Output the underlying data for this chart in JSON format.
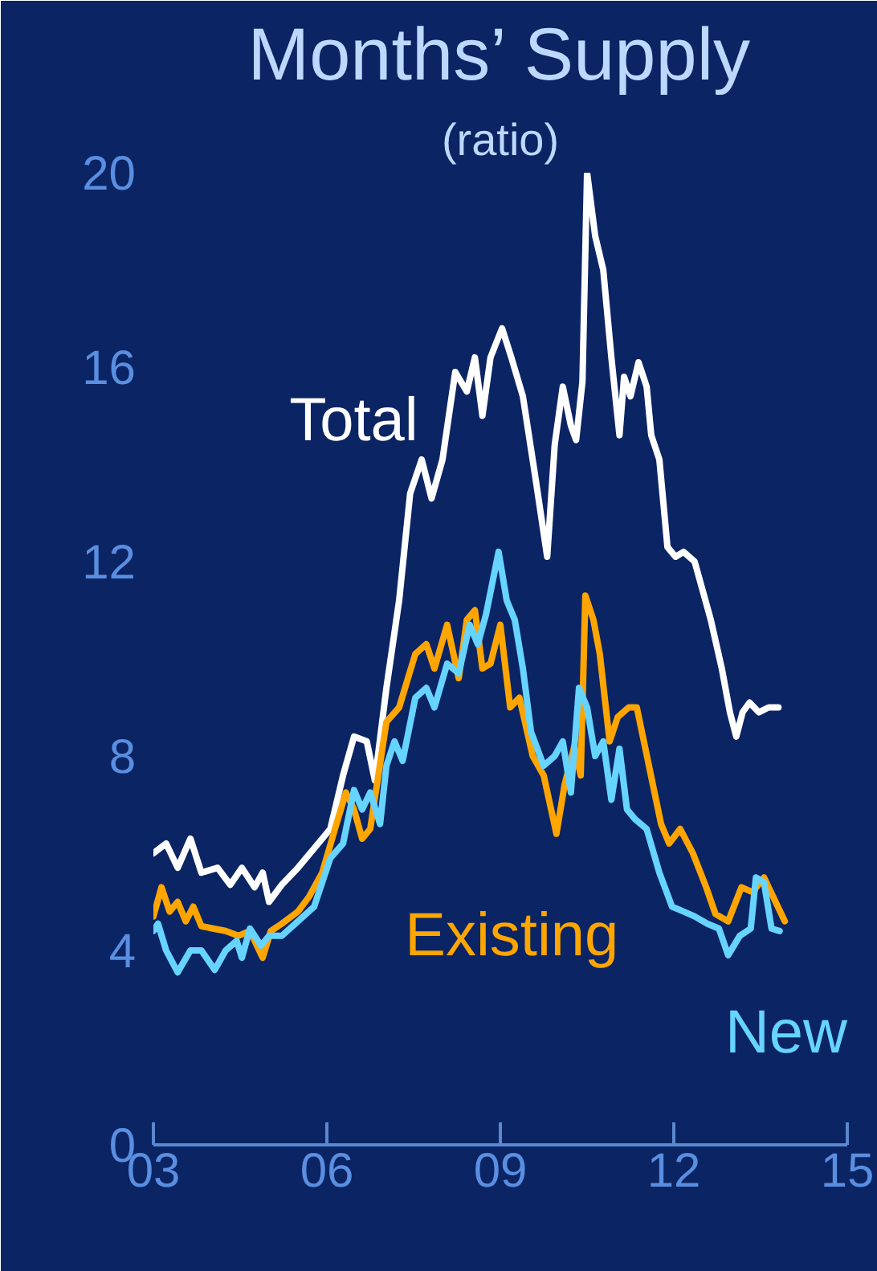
{
  "chart_data": {
    "type": "line",
    "title": "Months’ Supply",
    "subtitle": "(ratio)",
    "xlim": [
      2003,
      2015
    ],
    "xticks": [
      {
        "value": 2003,
        "label": "03"
      },
      {
        "value": 2006,
        "label": "06"
      },
      {
        "value": 2009,
        "label": "09"
      },
      {
        "value": 2012,
        "label": "12"
      },
      {
        "value": 2015,
        "label": "15"
      }
    ],
    "ylim": [
      0,
      20
    ],
    "yticks": [
      0,
      4,
      8,
      12,
      16,
      20
    ],
    "grid": false,
    "marker": "none",
    "line_style": "solid",
    "series": [
      {
        "name": "Total",
        "color": "#ffffff",
        "x": [
          2003.0,
          2003.22,
          2003.42,
          2003.64,
          2003.83,
          2004.11,
          2004.33,
          2004.53,
          2004.75,
          2004.89,
          2005.0,
          2005.22,
          2005.5,
          2005.78,
          2006.06,
          2006.28,
          2006.47,
          2006.69,
          2006.83,
          2007.03,
          2007.25,
          2007.44,
          2007.64,
          2007.81,
          2008.0,
          2008.22,
          2008.42,
          2008.56,
          2008.69,
          2008.83,
          2009.03,
          2009.19,
          2009.39,
          2009.61,
          2009.81,
          2009.94,
          2010.08,
          2010.22,
          2010.31,
          2010.42,
          2010.5,
          2010.64,
          2010.78,
          2010.92,
          2011.06,
          2011.14,
          2011.25,
          2011.39,
          2011.53,
          2011.61,
          2011.75,
          2011.89,
          2012.03,
          2012.17,
          2012.36,
          2012.64,
          2012.83,
          2012.97,
          2013.08,
          2013.19,
          2013.31,
          2013.47,
          2013.64,
          2013.81
        ],
        "values": [
          6.0,
          6.2,
          5.7,
          6.3,
          5.6,
          5.7,
          5.35,
          5.7,
          5.3,
          5.6,
          5.0,
          5.35,
          5.7,
          6.1,
          6.5,
          7.6,
          8.4,
          8.3,
          7.5,
          9.4,
          11.2,
          13.4,
          14.1,
          13.3,
          14.1,
          15.9,
          15.5,
          16.2,
          15.0,
          16.2,
          16.8,
          16.2,
          15.4,
          13.7,
          12.1,
          14.4,
          15.6,
          14.8,
          14.5,
          15.7,
          20.0,
          18.7,
          18.0,
          16.2,
          14.6,
          15.8,
          15.4,
          16.1,
          15.6,
          14.6,
          14.1,
          12.3,
          12.1,
          12.2,
          12.0,
          10.8,
          9.8,
          8.9,
          8.4,
          8.9,
          9.1,
          8.9,
          9.0,
          9.0
        ]
      },
      {
        "name": "Existing",
        "color": "#ffa500",
        "x": [
          2003.0,
          2003.14,
          2003.28,
          2003.42,
          2003.56,
          2003.69,
          2003.83,
          2004.03,
          2004.25,
          2004.47,
          2004.67,
          2004.89,
          2005.03,
          2005.22,
          2005.5,
          2005.69,
          2005.92,
          2006.14,
          2006.33,
          2006.47,
          2006.61,
          2006.75,
          2006.89,
          2007.03,
          2007.25,
          2007.53,
          2007.72,
          2007.86,
          2008.08,
          2008.28,
          2008.42,
          2008.56,
          2008.69,
          2008.83,
          2009.0,
          2009.17,
          2009.33,
          2009.56,
          2009.75,
          2009.97,
          2010.11,
          2010.28,
          2010.39,
          2010.47,
          2010.61,
          2010.72,
          2010.89,
          2011.03,
          2011.22,
          2011.36,
          2011.5,
          2011.78,
          2011.92,
          2012.11,
          2012.33,
          2012.56,
          2012.72,
          2012.94,
          2013.17,
          2013.36,
          2013.56,
          2013.72,
          2013.92
        ],
        "values": [
          4.7,
          5.3,
          4.8,
          5.0,
          4.6,
          4.9,
          4.5,
          4.45,
          4.4,
          4.3,
          4.4,
          3.85,
          4.4,
          4.55,
          4.8,
          5.1,
          5.6,
          6.5,
          7.25,
          6.9,
          6.3,
          6.5,
          7.6,
          8.7,
          9.0,
          10.1,
          10.3,
          9.8,
          10.7,
          9.6,
          10.8,
          11.0,
          9.8,
          9.9,
          10.7,
          9.0,
          9.2,
          8.0,
          7.6,
          6.4,
          7.4,
          8.2,
          7.6,
          11.3,
          10.8,
          10.1,
          8.3,
          8.8,
          9.0,
          9.0,
          8.2,
          6.6,
          6.2,
          6.5,
          6.0,
          5.3,
          4.75,
          4.6,
          5.3,
          5.2,
          5.5,
          5.1,
          4.6
        ]
      },
      {
        "name": "New",
        "color": "#66d4ff",
        "x": [
          2003.0,
          2003.08,
          2003.22,
          2003.42,
          2003.64,
          2003.83,
          2004.06,
          2004.25,
          2004.44,
          2004.53,
          2004.67,
          2004.86,
          2005.0,
          2005.22,
          2005.5,
          2005.78,
          2006.06,
          2006.28,
          2006.47,
          2006.61,
          2006.75,
          2006.92,
          2007.03,
          2007.17,
          2007.31,
          2007.53,
          2007.72,
          2007.86,
          2008.08,
          2008.28,
          2008.47,
          2008.61,
          2008.75,
          2008.97,
          2009.11,
          2009.25,
          2009.39,
          2009.53,
          2009.75,
          2009.94,
          2010.08,
          2010.22,
          2010.36,
          2010.5,
          2010.64,
          2010.78,
          2010.92,
          2011.06,
          2011.19,
          2011.33,
          2011.53,
          2011.75,
          2011.97,
          2012.17,
          2012.36,
          2012.58,
          2012.78,
          2012.94,
          2013.14,
          2013.33,
          2013.42,
          2013.56,
          2013.69,
          2013.83
        ],
        "values": [
          4.4,
          4.55,
          4.0,
          3.55,
          4.0,
          4.0,
          3.6,
          4.0,
          4.2,
          3.85,
          4.45,
          4.1,
          4.3,
          4.3,
          4.6,
          4.9,
          5.9,
          6.2,
          7.3,
          6.9,
          7.25,
          6.6,
          7.8,
          8.3,
          7.9,
          9.2,
          9.4,
          9.0,
          9.9,
          9.7,
          10.7,
          10.3,
          10.9,
          12.2,
          11.2,
          10.8,
          9.8,
          8.5,
          7.8,
          8.0,
          8.3,
          7.25,
          9.4,
          9.0,
          8.0,
          8.3,
          7.1,
          8.15,
          6.9,
          6.7,
          6.5,
          5.6,
          4.9,
          4.8,
          4.7,
          4.55,
          4.45,
          3.9,
          4.3,
          4.45,
          5.5,
          5.4,
          4.45,
          4.4
        ]
      }
    ]
  }
}
